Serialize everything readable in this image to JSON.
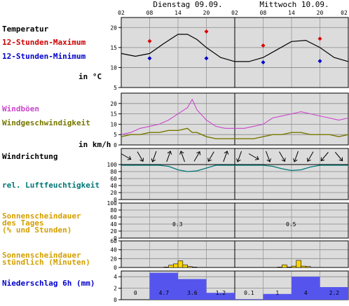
{
  "header": {
    "days": [
      {
        "label": "Dienstag 09.09."
      },
      {
        "label": "Mittwoch 10.09."
      }
    ],
    "hour_ticks": [
      "02",
      "08",
      "14",
      "20",
      "02",
      "08",
      "14",
      "20",
      "02"
    ]
  },
  "panels": {
    "temperature": {
      "labels": [
        "Temperatur",
        "12-Stunden-Maximum",
        "12-Stunden-Minimum",
        "in °C"
      ],
      "ticks": [
        "20",
        "15",
        "10",
        "5"
      ]
    },
    "wind": {
      "labels": [
        "Windböen",
        "Windgeschwindigkeit",
        "in km/h"
      ],
      "ticks": [
        "20",
        "15",
        "10",
        "5",
        "0"
      ]
    },
    "direction": {
      "labels": [
        "Windrichtung"
      ]
    },
    "humidity": {
      "labels": [
        "rel. Luftfeuchtigkeit"
      ],
      "ticks": [
        "100",
        "80",
        "60",
        "40",
        "20",
        "0"
      ]
    },
    "sun_daily": {
      "labels": [
        "Sonnenscheindauer",
        "des Tages",
        "(% und Stunden)"
      ],
      "ticks": [
        "100",
        "80",
        "60",
        "40",
        "20",
        "0"
      ]
    },
    "sun_hourly": {
      "labels": [
        "Sonnenscheindauer",
        "stündlich (Minuten)"
      ],
      "ticks": [
        "60",
        "40",
        "20",
        "0"
      ]
    },
    "precip": {
      "labels": [
        "Niederschlag 6h (mm)"
      ],
      "ticks": [
        "4",
        "2",
        "0"
      ]
    }
  },
  "colors": {
    "panel_bg": "#dcdcdc",
    "temp_line": "#000000",
    "max_marker": "#dd0000",
    "min_marker": "#0000cc",
    "gust": "#cc44cc",
    "wind": "#777700",
    "humidity": "#007777",
    "sun_text": "#d4a000",
    "sun_bar": "#ffd700",
    "precip_bar": "#5555ee",
    "precip_text": "#0000cc"
  },
  "chart_data": [
    {
      "type": "line",
      "name": "temperature",
      "x_hours": [
        2,
        5,
        8,
        11,
        14,
        16,
        18,
        20,
        23,
        26,
        29,
        32,
        35,
        38,
        41,
        44,
        47,
        50
      ],
      "values": [
        13.5,
        12.8,
        13.5,
        16.0,
        18.3,
        18.3,
        17.0,
        15.0,
        12.5,
        11.5,
        11.5,
        12.5,
        14.5,
        16.5,
        16.8,
        15.0,
        12.5,
        11.5
      ],
      "max": {
        "x_hours": [
          8,
          20,
          32,
          44
        ],
        "values": [
          16.6,
          19.0,
          15.5,
          17.2
        ]
      },
      "min": {
        "x_hours": [
          8,
          20,
          32,
          44
        ],
        "values": [
          12.3,
          12.3,
          11.3,
          11.6
        ]
      },
      "ylim": [
        5,
        22.5
      ]
    },
    {
      "type": "line",
      "name": "wind",
      "x_hours": [
        2,
        4,
        6,
        8,
        10,
        12,
        14,
        16,
        17,
        18,
        20,
        22,
        24,
        26,
        28,
        30,
        32,
        34,
        36,
        38,
        40,
        42,
        44,
        46,
        48,
        50
      ],
      "gust": [
        5,
        6,
        8,
        9,
        10,
        12,
        15,
        18,
        22,
        17,
        12,
        9,
        8,
        8,
        8,
        9,
        10,
        13,
        14,
        15,
        16,
        15,
        14,
        13,
        12,
        13
      ],
      "speed": [
        4,
        5,
        5,
        6,
        6,
        7,
        7,
        8,
        6,
        6,
        4,
        3,
        3,
        3,
        3,
        3,
        4,
        5,
        5,
        6,
        6,
        5,
        5,
        5,
        4,
        5
      ],
      "ylim": [
        0,
        25
      ]
    },
    {
      "type": "table",
      "name": "wind_direction",
      "x_hours": [
        3,
        6,
        9,
        12,
        15,
        18,
        21,
        24,
        27,
        30,
        33,
        36,
        39,
        42,
        45,
        48
      ],
      "from_deg": [
        300,
        330,
        20,
        200,
        160,
        210,
        30,
        200,
        20,
        300,
        340,
        330,
        20,
        30,
        40,
        320
      ]
    },
    {
      "type": "line",
      "name": "humidity",
      "x_hours": [
        2,
        4,
        6,
        8,
        10,
        12,
        14,
        16,
        18,
        20,
        22,
        24,
        26,
        28,
        30,
        32,
        34,
        36,
        38,
        40,
        42,
        44,
        46,
        48,
        50
      ],
      "values": [
        98,
        98,
        98,
        98,
        98,
        95,
        85,
        80,
        82,
        90,
        98,
        98,
        98,
        98,
        98,
        98,
        95,
        88,
        83,
        85,
        93,
        98,
        98,
        98,
        98
      ],
      "ylim": [
        0,
        100
      ]
    },
    {
      "type": "table",
      "name": "sunshine_daily",
      "days": [
        "Dienstag 09.09.",
        "Mittwoch 10.09."
      ],
      "percent": [
        3,
        5
      ],
      "hours": [
        0.3,
        0.5
      ],
      "ylim": [
        0,
        100
      ]
    },
    {
      "type": "bar",
      "name": "sunshine_hourly",
      "x_hours": [
        11,
        12,
        13,
        14,
        15,
        16,
        17,
        35,
        36,
        37,
        38,
        39,
        40,
        41
      ],
      "values": [
        1,
        5,
        8,
        15,
        6,
        2,
        1,
        1,
        6,
        1,
        3,
        16,
        3,
        2
      ],
      "ylim": [
        0,
        60
      ]
    },
    {
      "type": "bar",
      "name": "precipitation_6h",
      "x_start_hours": [
        2,
        8,
        14,
        20,
        26,
        32,
        38,
        44
      ],
      "values": [
        0,
        4.7,
        3.6,
        1.2,
        0.1,
        1,
        4,
        2.2
      ],
      "labels": [
        "0",
        "4.7",
        "3.6",
        "1.2",
        "0.1",
        "1",
        "4",
        "2.2"
      ],
      "ylim": [
        0,
        5
      ]
    }
  ]
}
